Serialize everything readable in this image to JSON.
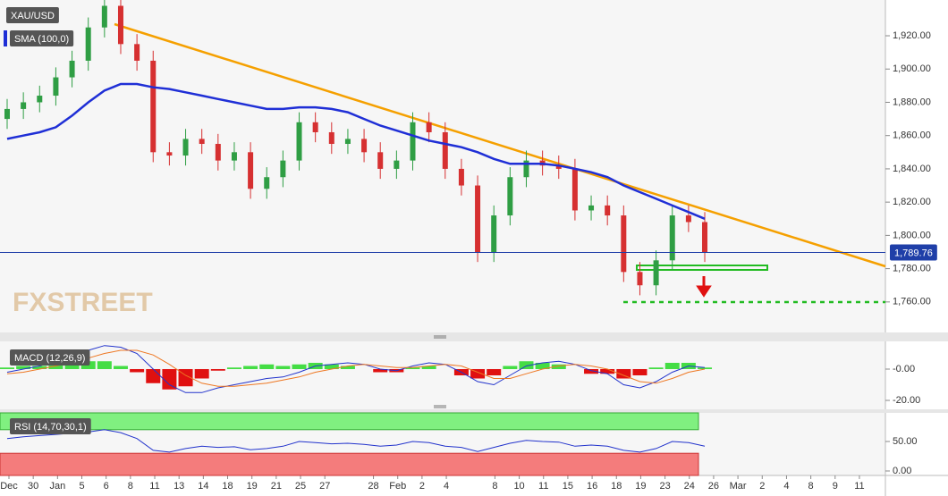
{
  "watermark": "FXSTREET",
  "chart_data": [
    {
      "type": "candlestick",
      "name": "XAU/USD",
      "open": [
        1870,
        1876,
        1880,
        1884,
        1895,
        1905,
        1925,
        1938,
        1915,
        1905,
        1850,
        1848,
        1858,
        1855,
        1845,
        1850,
        1828,
        1835,
        1845,
        1868,
        1862,
        1855,
        1858,
        1850,
        1840,
        1845,
        1868,
        1862,
        1840,
        1830,
        1790,
        1812,
        1835,
        1845,
        1842,
        1840,
        1815,
        1818,
        1812,
        1778,
        1770,
        1785,
        1812,
        1808
      ],
      "high": [
        1882,
        1886,
        1890,
        1901,
        1911,
        1931,
        1944,
        1944,
        1921,
        1911,
        1856,
        1864,
        1864,
        1861,
        1856,
        1856,
        1841,
        1851,
        1874,
        1874,
        1868,
        1864,
        1864,
        1856,
        1851,
        1874,
        1874,
        1868,
        1846,
        1836,
        1818,
        1841,
        1851,
        1851,
        1848,
        1846,
        1824,
        1824,
        1818,
        1784,
        1791,
        1818,
        1818,
        1814
      ],
      "low": [
        1864,
        1870,
        1874,
        1878,
        1889,
        1899,
        1919,
        1909,
        1899,
        1844,
        1842,
        1842,
        1849,
        1839,
        1839,
        1822,
        1822,
        1829,
        1839,
        1856,
        1849,
        1849,
        1844,
        1834,
        1834,
        1839,
        1856,
        1834,
        1824,
        1784,
        1784,
        1806,
        1829,
        1836,
        1834,
        1809,
        1809,
        1806,
        1772,
        1764,
        1764,
        1779,
        1802,
        1784
      ],
      "close": [
        1876,
        1880,
        1884,
        1895,
        1905,
        1925,
        1938,
        1915,
        1905,
        1850,
        1848,
        1858,
        1855,
        1845,
        1850,
        1828,
        1835,
        1845,
        1868,
        1862,
        1855,
        1858,
        1850,
        1840,
        1845,
        1868,
        1862,
        1840,
        1830,
        1790,
        1812,
        1835,
        1845,
        1842,
        1840,
        1815,
        1818,
        1812,
        1778,
        1770,
        1785,
        1812,
        1808,
        1790
      ],
      "up_color": "#2f9e44",
      "down_color": "#d63031",
      "series": [
        {
          "name": "SMA (100,0)",
          "color": "#1f2fd6",
          "values": [
            1858,
            1860,
            1862,
            1865,
            1872,
            1880,
            1887,
            1891,
            1891,
            1889,
            1888,
            1886,
            1884,
            1882,
            1880,
            1878,
            1876,
            1876,
            1877,
            1877,
            1876,
            1874,
            1870,
            1866,
            1863,
            1860,
            1857,
            1855,
            1853,
            1850,
            1846,
            1843,
            1843,
            1843,
            1842,
            1840,
            1838,
            1835,
            1830,
            1826,
            1822,
            1818,
            1814,
            1810
          ]
        }
      ],
      "last_price": {
        "value": 1789.76,
        "label": "1,789.76"
      },
      "last_price_color": "#1f3fa8",
      "ylim": [
        1741.65,
        1941.5
      ],
      "yticks": [
        {
          "value": 1760,
          "label": "1,760.00"
        },
        {
          "value": 1780,
          "label": "1,780.00"
        },
        {
          "value": 1800,
          "label": "1,800.00"
        },
        {
          "value": 1820,
          "label": "1,820.00"
        },
        {
          "value": 1840,
          "label": "1,840.00"
        },
        {
          "value": 1860,
          "label": "1,860.00"
        },
        {
          "value": 1880,
          "label": "1,880.00"
        },
        {
          "value": 1900,
          "label": "1,900.00"
        },
        {
          "value": 1920,
          "label": "1,920.00"
        }
      ],
      "xtick_labels": [
        "Dec",
        "30",
        "Jan",
        "5",
        "6",
        "8",
        "11",
        "13",
        "14",
        "18",
        "19",
        "21",
        "25",
        "27",
        null,
        "28",
        "Feb",
        "2",
        "4",
        null,
        "8",
        "10",
        "11",
        "15",
        "16",
        "18",
        "19",
        "23",
        "24",
        "26",
        "Mar",
        "2",
        "4",
        "8",
        "9",
        "11"
      ]
    },
    {
      "type": "macd",
      "name": "MACD (12,26,9)",
      "histogram": [
        1,
        2,
        2,
        3,
        4,
        5,
        5,
        2,
        -2,
        -9,
        -13,
        -11,
        -6,
        -1,
        1,
        2,
        3,
        2,
        3,
        4,
        3,
        2,
        0,
        -2,
        -2,
        1,
        2,
        0,
        -4,
        -6,
        -4,
        2,
        5,
        4,
        3,
        0,
        -3,
        -3,
        -6,
        -4,
        1,
        4,
        4,
        1
      ],
      "up_color": "#44dd44",
      "down_color": "#e01010",
      "series": [
        {
          "color": "#2233cc",
          "values": [
            -2,
            0,
            2,
            5,
            8,
            12,
            15,
            14,
            10,
            0,
            -10,
            -15,
            -15,
            -12,
            -10,
            -8,
            -6,
            -5,
            -2,
            2,
            3,
            4,
            3,
            0,
            -1,
            2,
            4,
            3,
            -2,
            -8,
            -10,
            -4,
            2,
            4,
            5,
            3,
            -1,
            -3,
            -10,
            -12,
            -8,
            -2,
            2,
            1
          ]
        },
        {
          "color": "#ee7722",
          "values": [
            -3,
            -2,
            0,
            2,
            4,
            7,
            10,
            12,
            12,
            9,
            3,
            -4,
            -9,
            -11,
            -11,
            -10,
            -9,
            -7,
            -5,
            -2,
            0,
            2,
            3,
            2,
            1,
            1,
            2,
            3,
            2,
            -2,
            -6,
            -6,
            -3,
            0,
            2,
            3,
            2,
            0,
            -4,
            -8,
            -9,
            -6,
            -2,
            0
          ]
        }
      ],
      "ylim": [
        -25.7,
        17.7
      ],
      "yticks": [
        {
          "value": 0,
          "label": "-0.00"
        },
        {
          "value": -20,
          "label": "-20.00"
        }
      ]
    },
    {
      "type": "rsi",
      "name": "RSI (14,70,30,1)",
      "values": [
        55,
        58,
        60,
        62,
        64,
        66,
        70,
        65,
        55,
        35,
        32,
        38,
        42,
        40,
        41,
        36,
        38,
        42,
        50,
        48,
        46,
        47,
        45,
        42,
        44,
        50,
        48,
        42,
        40,
        33,
        40,
        47,
        52,
        50,
        49,
        42,
        44,
        42,
        35,
        32,
        38,
        50,
        48,
        42
      ],
      "color": "#2233cc",
      "upper": 70,
      "lower": 30,
      "upper_color": "#80f080",
      "lower_color": "#f47c7c",
      "ylim": [
        -7.6,
        98.5
      ],
      "yticks": [
        {
          "value": 50,
          "label": "50.00"
        },
        {
          "value": 0,
          "label": "0.00"
        }
      ]
    }
  ]
}
